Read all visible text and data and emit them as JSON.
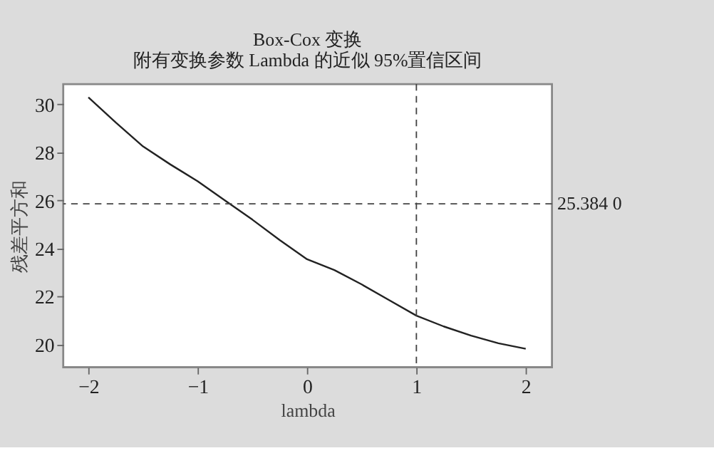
{
  "chart_data": {
    "type": "line",
    "title": [
      "Box-Cox 变换",
      "附有变换参数 Lambda 的近似 95%置信区间"
    ],
    "xlabel": "lambda",
    "ylabel": "残差平方和",
    "x": [
      -2,
      -1.75,
      -1.5,
      -1.25,
      -1,
      -0.75,
      -0.5,
      -0.25,
      0,
      0.25,
      0.5,
      0.75,
      1,
      1.25,
      1.5,
      1.75,
      2
    ],
    "series": [
      {
        "color": "#222222",
        "values": [
          30.3,
          29.25,
          28.25,
          27.5,
          26.8,
          26.0,
          25.2,
          24.35,
          23.55,
          23.1,
          22.5,
          21.85,
          21.2,
          20.75,
          20.37,
          20.05,
          19.82
        ]
      }
    ],
    "xlim": [
      -2.23,
      2.24
    ],
    "ylim": [
      19.05,
      30.85
    ],
    "xticks": [
      -2,
      -1,
      0,
      1,
      2
    ],
    "yticks": [
      20,
      22,
      24,
      26,
      28,
      30
    ],
    "annotations": [
      "25.384 0"
    ],
    "ref_lines": [
      {
        "axis": "y",
        "value": 25.86,
        "line_style": "dashed",
        "color": "#444444"
      },
      {
        "axis": "x",
        "value": 1,
        "line_style": "dashed",
        "color": "#444444"
      }
    ],
    "grid": false,
    "line_style": "solid",
    "marker": "none"
  }
}
